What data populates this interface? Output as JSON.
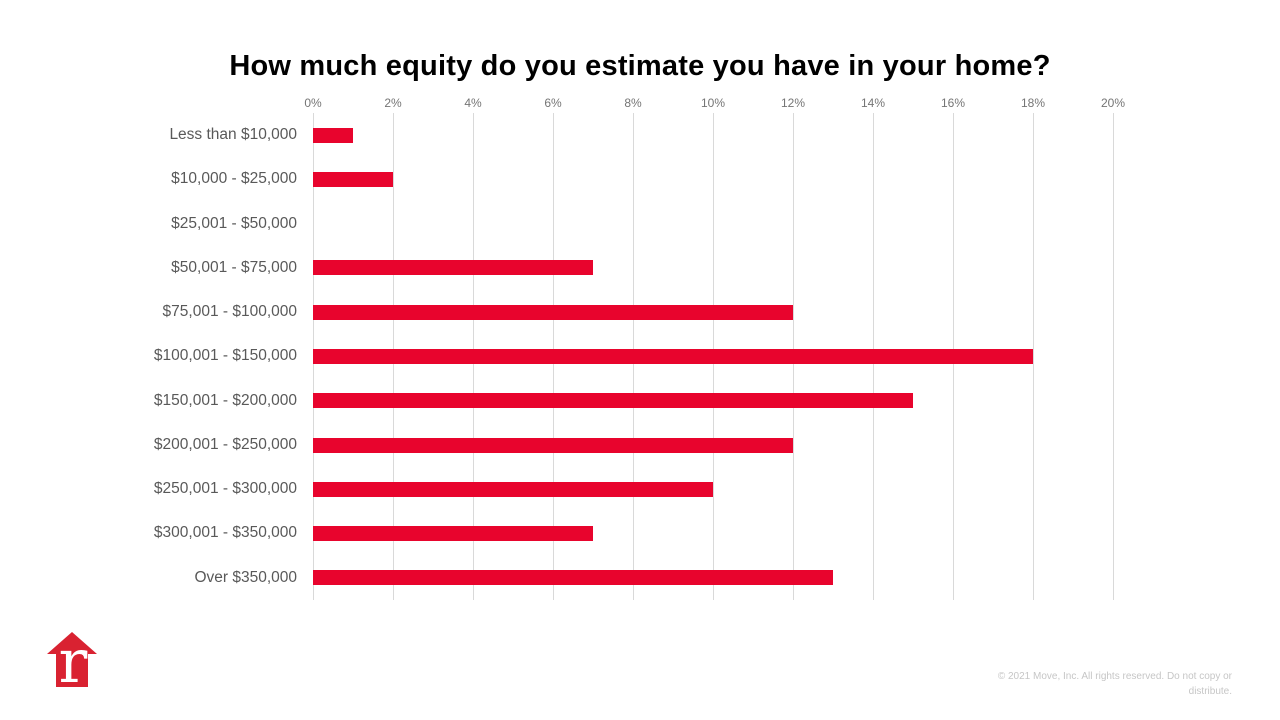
{
  "chart_data": {
    "type": "bar",
    "orientation": "horizontal",
    "title": "How much equity do you estimate you have in your home?",
    "categories": [
      "Less than $10,000",
      "$10,000 - $25,000",
      "$25,001 - $50,000",
      "$50,001 - $75,000",
      "$75,001 - $100,000",
      "$100,001 - $150,000",
      "$150,001 - $200,000",
      "$200,001 - $250,000",
      "$250,001 - $300,000",
      "$300,001 - $350,000",
      "Over $350,000"
    ],
    "values": [
      1,
      2,
      0,
      7,
      12,
      18,
      15,
      12,
      10,
      7,
      13
    ],
    "value_unit": "%",
    "xticks": [
      0,
      2,
      4,
      6,
      8,
      10,
      12,
      14,
      16,
      18,
      20
    ],
    "xtick_suffix": "%",
    "xlim": [
      0,
      20
    ],
    "grid": true,
    "legend": "none",
    "bar_color": "#e8042d",
    "gridline_color": "#d9d9d9",
    "tick_label_color": "#757575",
    "category_label_color": "#595959"
  },
  "logo": {
    "name": "realtor-com-house-logo",
    "letter": "r",
    "house_color": "#d92231",
    "letter_color": "#ffffff"
  },
  "footer": {
    "copyright": "© 2021 Move, Inc. All rights reserved. Do not copy or distribute."
  }
}
